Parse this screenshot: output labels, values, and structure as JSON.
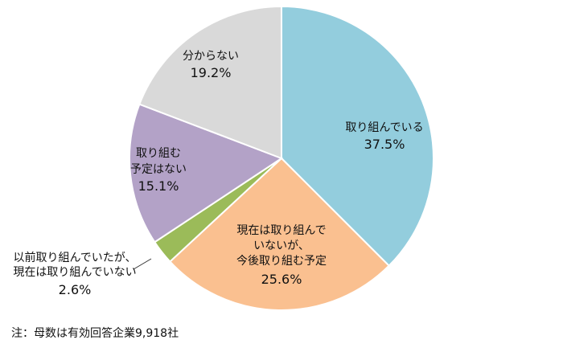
{
  "chart_data": {
    "type": "pie",
    "start_angle_deg": 0,
    "direction": "clockwise",
    "slices": [
      {
        "label_lines": [
          "取り組んでいる"
        ],
        "value": 37.5,
        "display": "37.5%",
        "color": "#93CDDD"
      },
      {
        "label_lines": [
          "現在は取り組んで",
          "いないが、",
          "今後取り組む予定"
        ],
        "value": 25.6,
        "display": "25.6%",
        "color": "#FAC090"
      },
      {
        "label_lines": [
          "以前取り組んでいたが、",
          "現在は取り組んでいない"
        ],
        "value": 2.6,
        "display": "2.6%",
        "color": "#9BBB59"
      },
      {
        "label_lines": [
          "取り組む",
          "予定はない"
        ],
        "value": 15.1,
        "display": "15.1%",
        "color": "#B3A2C7"
      },
      {
        "label_lines": [
          "分からない"
        ],
        "value": 19.2,
        "display": "19.2%",
        "color": "#D9D9D9"
      }
    ]
  },
  "footnote": "注：母数は有効回答企業9,918社"
}
